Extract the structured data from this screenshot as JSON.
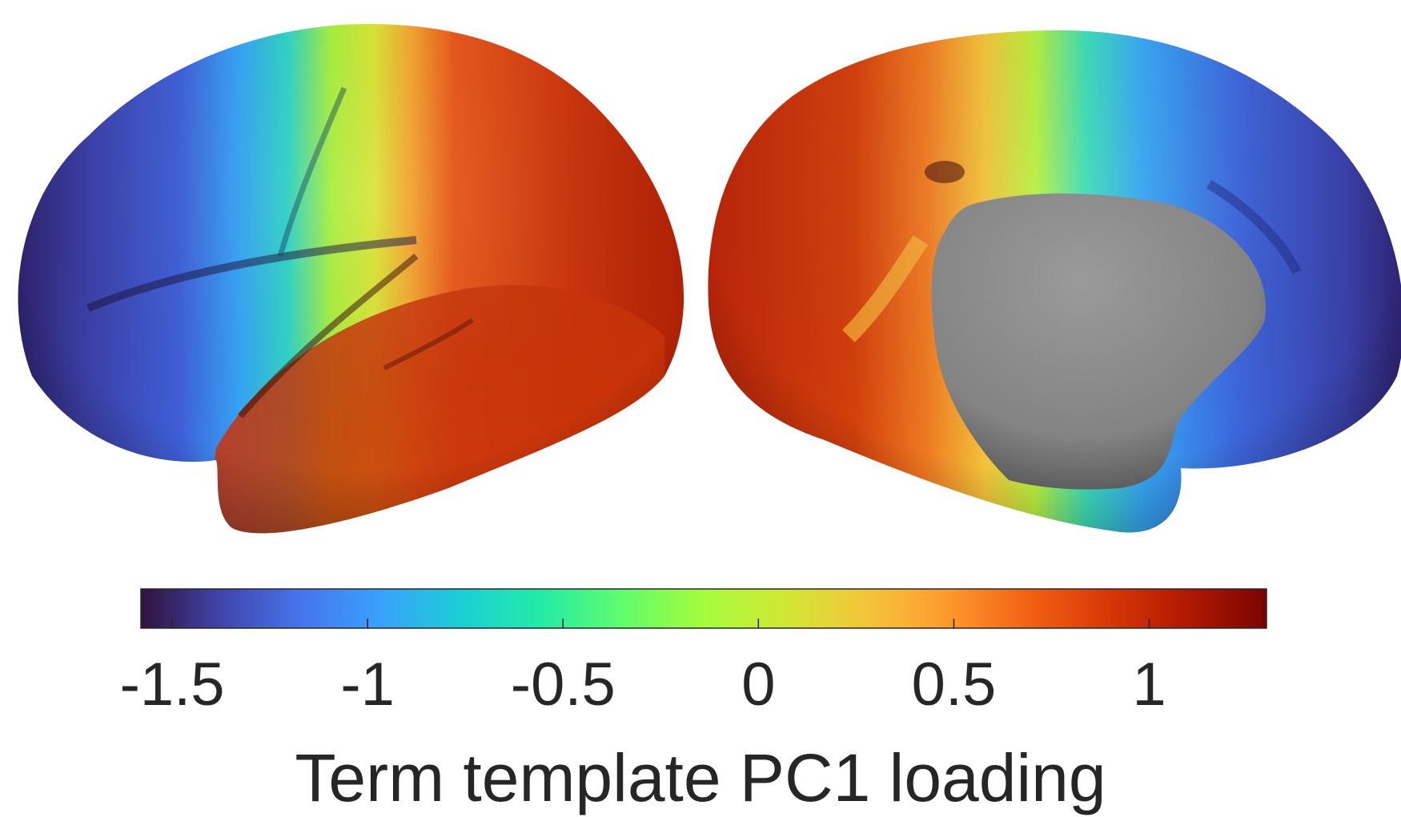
{
  "figure": {
    "colorbar": {
      "label": "Term template PC1 loading",
      "ticks": [
        {
          "value": -1.5,
          "label": "-1.5"
        },
        {
          "value": -1,
          "label": "-1"
        },
        {
          "value": -0.5,
          "label": "-0.5"
        },
        {
          "value": 0,
          "label": "0"
        },
        {
          "value": 0.5,
          "label": "0.5"
        },
        {
          "value": 1,
          "label": "1"
        }
      ],
      "range": [
        -1.58,
        1.3
      ],
      "colormap": [
        "#30123b",
        "#4145ab",
        "#4675ed",
        "#39a2fc",
        "#1bcfd4",
        "#24eca6",
        "#61fc6c",
        "#a4fc3b",
        "#d1e834",
        "#f3c63a",
        "#fe9b2d",
        "#f36315",
        "#d93806",
        "#b11901",
        "#7a0402"
      ]
    },
    "hemispheres": [
      {
        "view": "lateral",
        "pattern": "anterior blue, posterior red"
      },
      {
        "view": "medial",
        "pattern": "posterior red, anterior blue, medial wall grey"
      }
    ],
    "colors": {
      "medial_wall": "#888888",
      "text": "#262626"
    }
  }
}
